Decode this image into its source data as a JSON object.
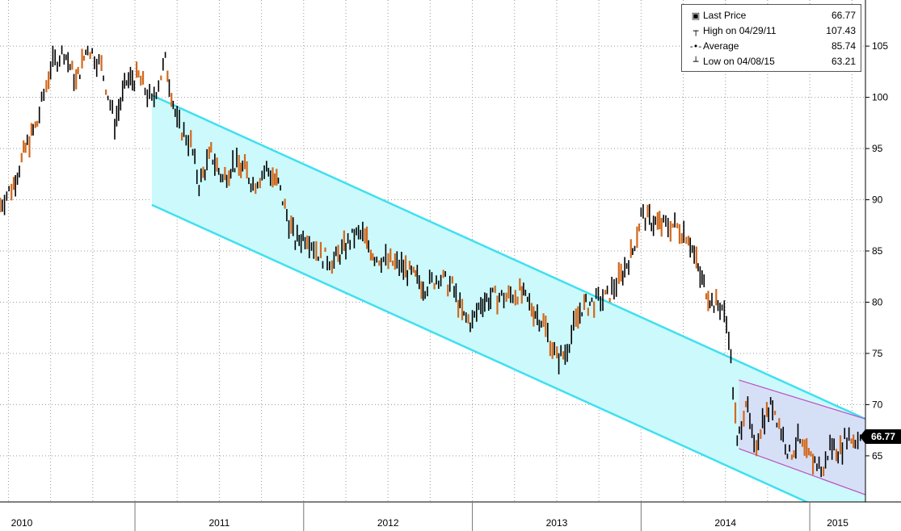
{
  "chart_data": {
    "type": "line",
    "title": "",
    "xlabel": "",
    "ylabel": "",
    "years": [
      "2010",
      "2011",
      "2012",
      "2013",
      "2014",
      "2015"
    ],
    "yticks": [
      65,
      70,
      75,
      80,
      85,
      90,
      95,
      100,
      105
    ],
    "ylim": [
      60.5,
      109.5
    ],
    "x_range_years": [
      2010.2,
      2015.33
    ],
    "grid": "on",
    "legend_position": "top-right",
    "series": [
      {
        "x": [
          2010.2,
          2010.28,
          2010.35,
          2010.42,
          2010.5,
          2010.58,
          2010.65,
          2010.72,
          2010.8,
          2010.88,
          2010.95,
          2011.02,
          2011.1,
          2011.18,
          2011.25,
          2011.33,
          2011.38,
          2011.45,
          2011.52,
          2011.58,
          2011.65,
          2011.7,
          2011.78,
          2011.85,
          2011.9,
          2011.95,
          2012.02,
          2012.1,
          2012.18,
          2012.25,
          2012.3,
          2012.35,
          2012.42,
          2012.5,
          2012.58,
          2012.65,
          2012.72,
          2012.8,
          2012.88,
          2012.95,
          2013.0,
          2013.05,
          2013.12,
          2013.2,
          2013.28,
          2013.35,
          2013.42,
          2013.5,
          2013.55,
          2013.6,
          2013.65,
          2013.72,
          2013.8,
          2013.88,
          2013.95,
          2014.0,
          2014.05,
          2014.12,
          2014.2,
          2014.28,
          2014.35,
          2014.42,
          2014.48,
          2014.52,
          2014.57,
          2014.62,
          2014.67,
          2014.72,
          2014.78,
          2014.83,
          2014.88,
          2014.93,
          2014.98,
          2015.03,
          2015.08,
          2015.12,
          2015.18,
          2015.22,
          2015.27,
          2015.3
        ],
        "y": [
          89.5,
          91.5,
          95.0,
          97.5,
          103.0,
          104.5,
          101.5,
          105.0,
          103.0,
          97.5,
          101.5,
          102.0,
          99.5,
          103.5,
          97.5,
          95.5,
          91.5,
          94.5,
          92.0,
          93.5,
          93.0,
          91.5,
          93.0,
          91.5,
          88.5,
          86.0,
          86.5,
          84.5,
          84.0,
          85.5,
          86.5,
          86.5,
          84.5,
          84.0,
          83.5,
          82.5,
          81.5,
          82.5,
          81.5,
          78.5,
          78.0,
          80.0,
          80.5,
          80.5,
          81.0,
          79.5,
          78.0,
          74.5,
          75.0,
          77.5,
          79.5,
          80.0,
          80.5,
          82.5,
          85.0,
          88.5,
          88.0,
          87.5,
          87.5,
          86.5,
          82.5,
          80.0,
          79.5,
          77.0,
          66.0,
          70.5,
          65.5,
          68.5,
          70.0,
          67.5,
          65.0,
          66.5,
          65.0,
          64.5,
          63.5,
          66.0,
          65.5,
          67.0,
          66.5,
          66.77
        ]
      }
    ],
    "channels": [
      {
        "name": "",
        "upper": [
          [
            2011.1,
            100.2
          ],
          [
            2015.33,
            68.6
          ]
        ],
        "lower": [
          [
            2011.1,
            89.5
          ],
          [
            2015.33,
            57.9
          ]
        ]
      },
      {
        "name": "",
        "upper": [
          [
            2014.58,
            72.4
          ],
          [
            2015.33,
            68.6
          ]
        ],
        "lower": [
          [
            2014.58,
            65.7
          ],
          [
            2015.33,
            61.2
          ]
        ]
      }
    ],
    "legend": [
      {
        "symbol": "square",
        "label": "Last Price",
        "value": "66.77"
      },
      {
        "symbol": "high",
        "label": "High on 04/29/11",
        "value": "107.43"
      },
      {
        "symbol": "avg",
        "label": "Average",
        "value": "85.74"
      },
      {
        "symbol": "low",
        "label": "Low on 04/08/15",
        "value": "63.21"
      }
    ],
    "last_price_tag": "66.77",
    "colors": {
      "up": "#000000",
      "down": "#d2691e",
      "channel_line": "#3fe0f0",
      "channel_fill": "#ccf9fb",
      "sub_channel_line": "#c04cc0",
      "sub_channel_fill": "#d6dcf6",
      "grid": "#9a9a9a"
    }
  }
}
